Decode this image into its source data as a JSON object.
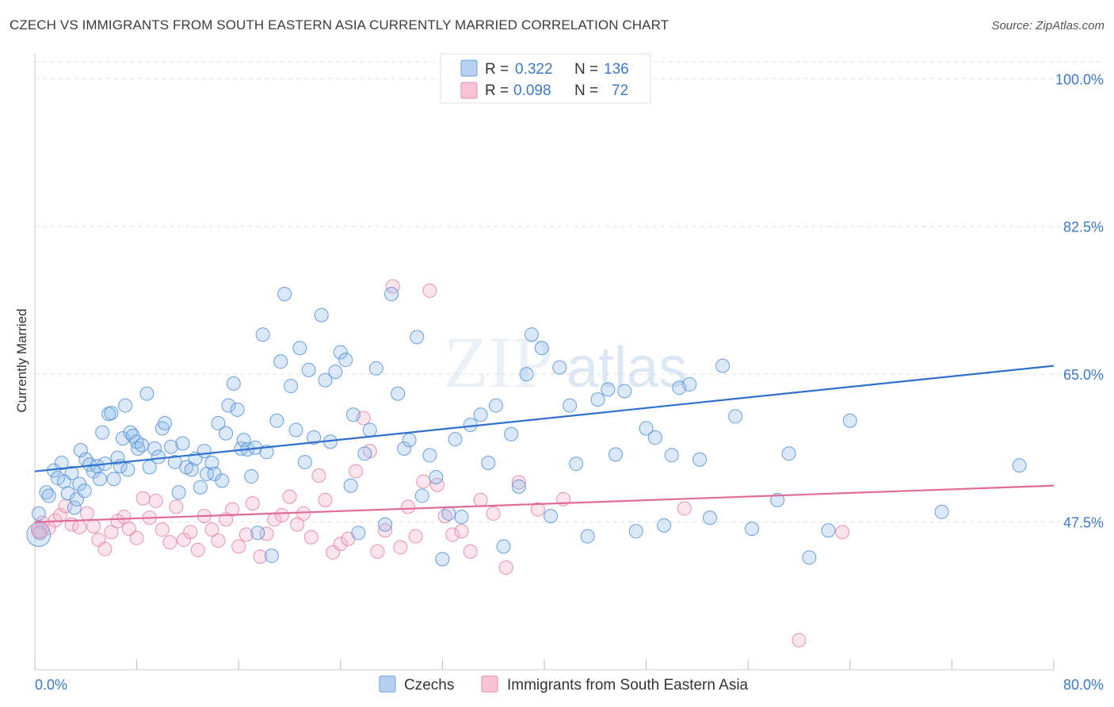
{
  "title": "CZECH VS IMMIGRANTS FROM SOUTH EASTERN ASIA CURRENTLY MARRIED CORRELATION CHART",
  "source": "Source: ZipAtlas.com",
  "watermark": "ZIPatlas",
  "colors": {
    "blue": "#4f8fdc",
    "pink": "#e57fa6",
    "blue_line": "#2f70cf",
    "pink_line": "#e06b98",
    "tick_label": "#3a78cc"
  },
  "legend_top": [
    {
      "swatch": "blue",
      "r_label": "R = ",
      "r_value": "0.322",
      "n_label": "N = ",
      "n_value": "136"
    },
    {
      "swatch": "pink",
      "r_label": "R = ",
      "r_value": "0.098",
      "n_label": "N = ",
      "n_value": "72"
    }
  ],
  "legend_bottom": [
    {
      "swatch": "blue",
      "label": "Czechs"
    },
    {
      "swatch": "pink",
      "label": "Immigrants from South Eastern Asia"
    }
  ],
  "chart_data": {
    "type": "scatter",
    "title": "CZECH VS IMMIGRANTS FROM SOUTH EASTERN ASIA CURRENTLY MARRIED CORRELATION CHART",
    "xlabel": "",
    "ylabel": "Currently Married",
    "xlim": [
      0,
      80
    ],
    "ylim": [
      30,
      102
    ],
    "x_tick_labels": [
      "0.0%",
      "80.0%"
    ],
    "y_ticks": [
      47.5,
      65.0,
      82.5,
      100.0
    ],
    "y_tick_labels": [
      "47.5%",
      "65.0%",
      "82.5%",
      "100.0%"
    ],
    "grid": "horizontal dashed",
    "legend_position": "top-center",
    "series": [
      {
        "name": "Czechs",
        "color": "#4f8fdc",
        "trend": {
          "x": [
            0,
            80
          ],
          "y": [
            53.5,
            66.0
          ]
        },
        "points": [
          [
            0.3,
            48.5
          ],
          [
            0.4,
            46.2
          ],
          [
            0.9,
            51.0
          ],
          [
            1.1,
            50.6
          ],
          [
            1.5,
            53.6
          ],
          [
            1.8,
            52.7
          ],
          [
            2.1,
            54.5
          ],
          [
            2.3,
            52.3
          ],
          [
            2.6,
            50.9
          ],
          [
            2.9,
            53.3
          ],
          [
            3.1,
            49.2
          ],
          [
            3.3,
            50.2
          ],
          [
            3.5,
            52.0
          ],
          [
            3.6,
            56.0
          ],
          [
            3.9,
            51.2
          ],
          [
            4.0,
            54.9
          ],
          [
            4.3,
            54.3
          ],
          [
            4.6,
            53.5
          ],
          [
            4.9,
            54.1
          ],
          [
            5.1,
            52.6
          ],
          [
            5.3,
            58.1
          ],
          [
            5.5,
            54.4
          ],
          [
            5.8,
            60.3
          ],
          [
            6.0,
            60.4
          ],
          [
            6.2,
            52.6
          ],
          [
            6.5,
            55.1
          ],
          [
            6.7,
            54.1
          ],
          [
            6.9,
            57.4
          ],
          [
            7.1,
            61.3
          ],
          [
            7.3,
            53.7
          ],
          [
            7.5,
            58.1
          ],
          [
            7.7,
            57.7
          ],
          [
            8.0,
            57.0
          ],
          [
            8.1,
            56.2
          ],
          [
            8.4,
            56.6
          ],
          [
            8.8,
            62.7
          ],
          [
            9.0,
            54.0
          ],
          [
            9.4,
            56.2
          ],
          [
            9.7,
            55.2
          ],
          [
            10.0,
            58.6
          ],
          [
            10.2,
            59.2
          ],
          [
            10.7,
            56.4
          ],
          [
            11.0,
            54.6
          ],
          [
            11.3,
            51.0
          ],
          [
            11.6,
            56.8
          ],
          [
            11.9,
            54.0
          ],
          [
            12.3,
            53.7
          ],
          [
            12.6,
            55.0
          ],
          [
            13.0,
            51.6
          ],
          [
            13.3,
            55.9
          ],
          [
            13.5,
            53.2
          ],
          [
            13.9,
            54.5
          ],
          [
            14.1,
            53.2
          ],
          [
            14.4,
            59.2
          ],
          [
            14.7,
            52.4
          ],
          [
            15.0,
            58.0
          ],
          [
            15.2,
            61.3
          ],
          [
            15.6,
            63.9
          ],
          [
            15.9,
            60.8
          ],
          [
            16.2,
            56.2
          ],
          [
            16.4,
            57.2
          ],
          [
            16.7,
            56.1
          ],
          [
            17.0,
            52.9
          ],
          [
            17.3,
            56.3
          ],
          [
            17.5,
            46.2
          ],
          [
            17.9,
            69.7
          ],
          [
            18.2,
            55.8
          ],
          [
            18.6,
            43.5
          ],
          [
            19.0,
            59.5
          ],
          [
            19.3,
            66.5
          ],
          [
            19.6,
            74.5
          ],
          [
            20.1,
            63.6
          ],
          [
            20.5,
            58.4
          ],
          [
            20.8,
            68.1
          ],
          [
            21.2,
            54.6
          ],
          [
            21.5,
            65.5
          ],
          [
            21.9,
            57.5
          ],
          [
            22.5,
            72.0
          ],
          [
            22.8,
            64.3
          ],
          [
            23.2,
            57.0
          ],
          [
            23.6,
            65.3
          ],
          [
            24.0,
            67.6
          ],
          [
            24.4,
            66.7
          ],
          [
            24.8,
            51.8
          ],
          [
            25.0,
            60.2
          ],
          [
            25.4,
            46.2
          ],
          [
            25.9,
            55.6
          ],
          [
            26.3,
            58.4
          ],
          [
            26.8,
            65.7
          ],
          [
            27.5,
            47.2
          ],
          [
            28.0,
            74.5
          ],
          [
            28.5,
            62.7
          ],
          [
            29.0,
            56.2
          ],
          [
            29.4,
            57.2
          ],
          [
            30.0,
            69.4
          ],
          [
            30.4,
            50.6
          ],
          [
            31.0,
            55.4
          ],
          [
            31.5,
            52.8
          ],
          [
            32.0,
            43.1
          ],
          [
            32.5,
            48.5
          ],
          [
            33.0,
            57.3
          ],
          [
            33.5,
            48.1
          ],
          [
            34.2,
            59.0
          ],
          [
            35.0,
            60.2
          ],
          [
            35.6,
            54.5
          ],
          [
            36.2,
            61.3
          ],
          [
            36.8,
            44.6
          ],
          [
            37.4,
            57.9
          ],
          [
            38.0,
            51.7
          ],
          [
            38.6,
            65.0
          ],
          [
            39.0,
            69.7
          ],
          [
            39.8,
            68.1
          ],
          [
            40.5,
            48.2
          ],
          [
            41.2,
            65.8
          ],
          [
            42.0,
            61.3
          ],
          [
            42.5,
            54.4
          ],
          [
            43.4,
            45.8
          ],
          [
            44.2,
            62.0
          ],
          [
            45.0,
            63.2
          ],
          [
            45.6,
            55.5
          ],
          [
            46.3,
            63.0
          ],
          [
            47.2,
            46.4
          ],
          [
            48.0,
            58.6
          ],
          [
            48.7,
            57.5
          ],
          [
            49.4,
            47.1
          ],
          [
            50.0,
            55.4
          ],
          [
            50.6,
            63.4
          ],
          [
            51.4,
            63.8
          ],
          [
            52.2,
            54.9
          ],
          [
            53.0,
            48.0
          ],
          [
            54.0,
            66.0
          ],
          [
            55.0,
            60.0
          ],
          [
            56.3,
            46.7
          ],
          [
            58.3,
            50.1
          ],
          [
            59.2,
            55.6
          ],
          [
            60.8,
            43.3
          ],
          [
            62.3,
            46.5
          ],
          [
            64.0,
            59.5
          ],
          [
            71.2,
            48.7
          ],
          [
            77.3,
            54.2
          ]
        ]
      },
      {
        "name": "Immigrants from South Eastern Asia",
        "color": "#e57fa6",
        "trend": {
          "x": [
            0,
            80
          ],
          "y": [
            47.5,
            51.8
          ]
        },
        "points": [
          [
            0.3,
            46.4
          ],
          [
            0.6,
            47.4
          ],
          [
            1.1,
            46.8
          ],
          [
            1.6,
            47.7
          ],
          [
            2.0,
            48.3
          ],
          [
            2.4,
            49.4
          ],
          [
            2.9,
            47.2
          ],
          [
            3.5,
            46.9
          ],
          [
            4.1,
            48.5
          ],
          [
            4.6,
            47.0
          ],
          [
            5.0,
            45.4
          ],
          [
            5.5,
            44.3
          ],
          [
            6.0,
            46.3
          ],
          [
            6.5,
            47.6
          ],
          [
            7.0,
            48.1
          ],
          [
            7.4,
            46.7
          ],
          [
            8.0,
            45.6
          ],
          [
            8.5,
            50.3
          ],
          [
            9.0,
            48.0
          ],
          [
            9.5,
            50.0
          ],
          [
            10.0,
            46.6
          ],
          [
            10.6,
            45.1
          ],
          [
            11.1,
            49.3
          ],
          [
            11.7,
            45.4
          ],
          [
            12.2,
            46.3
          ],
          [
            12.8,
            44.2
          ],
          [
            13.3,
            48.2
          ],
          [
            13.9,
            46.6
          ],
          [
            14.4,
            45.3
          ],
          [
            15.0,
            47.8
          ],
          [
            15.5,
            49.0
          ],
          [
            16.0,
            44.6
          ],
          [
            16.6,
            46.0
          ],
          [
            17.1,
            49.7
          ],
          [
            17.7,
            43.4
          ],
          [
            18.2,
            46.1
          ],
          [
            18.8,
            47.8
          ],
          [
            19.4,
            48.3
          ],
          [
            20.0,
            50.5
          ],
          [
            20.6,
            47.2
          ],
          [
            21.1,
            48.5
          ],
          [
            21.7,
            45.7
          ],
          [
            22.3,
            53.0
          ],
          [
            22.8,
            50.1
          ],
          [
            23.4,
            43.9
          ],
          [
            24.0,
            44.9
          ],
          [
            24.6,
            45.5
          ],
          [
            25.2,
            53.5
          ],
          [
            25.8,
            59.8
          ],
          [
            26.3,
            55.9
          ],
          [
            26.9,
            44.0
          ],
          [
            27.5,
            46.5
          ],
          [
            28.1,
            75.4
          ],
          [
            28.7,
            44.5
          ],
          [
            29.3,
            49.3
          ],
          [
            29.9,
            45.8
          ],
          [
            30.5,
            52.3
          ],
          [
            31.0,
            74.9
          ],
          [
            31.6,
            51.9
          ],
          [
            32.2,
            48.2
          ],
          [
            32.8,
            46.0
          ],
          [
            33.5,
            46.4
          ],
          [
            34.2,
            44.0
          ],
          [
            35.0,
            50.1
          ],
          [
            36.0,
            48.5
          ],
          [
            37.0,
            42.1
          ],
          [
            38.0,
            52.2
          ],
          [
            39.5,
            49.0
          ],
          [
            41.5,
            50.2
          ],
          [
            51.0,
            49.1
          ],
          [
            60.0,
            33.5
          ],
          [
            63.4,
            46.3
          ]
        ]
      }
    ]
  }
}
